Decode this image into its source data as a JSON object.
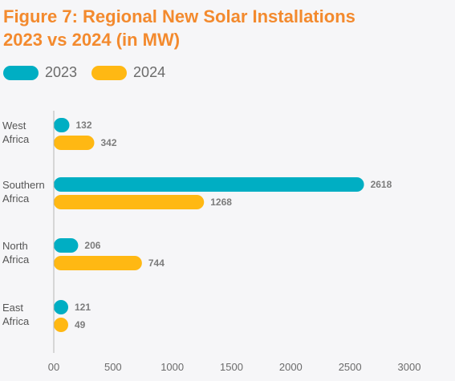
{
  "title_line1": "Figure 7: Regional New Solar Installations",
  "title_line2": "2023 vs 2024 (in MW)",
  "colors": {
    "title": "#f38a2e",
    "s2023": "#00aec3",
    "s2024": "#ffb813",
    "axis": "#b5b5b5"
  },
  "chart_data": {
    "type": "bar",
    "orientation": "horizontal",
    "title": "Figure 7: Regional New Solar Installations 2023 vs 2024 (in MW)",
    "categories": [
      [
        "West",
        "Africa"
      ],
      [
        "Southern",
        "Africa"
      ],
      [
        "North",
        "Africa"
      ],
      [
        "East",
        "Africa"
      ]
    ],
    "series": [
      {
        "name": "2023",
        "values": [
          132,
          2618,
          206,
          121
        ]
      },
      {
        "name": "2024",
        "values": [
          342,
          1268,
          744,
          49
        ]
      }
    ],
    "xlim": [
      0,
      3000
    ],
    "xticks": [
      0,
      500,
      1000,
      1500,
      2000,
      2500,
      3000
    ],
    "xtick_labels": [
      "00",
      "500",
      "1000",
      "1500",
      "2000",
      "2500",
      "3000"
    ],
    "legend_position": "top-left",
    "grid": false,
    "xlabel": "",
    "ylabel": ""
  }
}
